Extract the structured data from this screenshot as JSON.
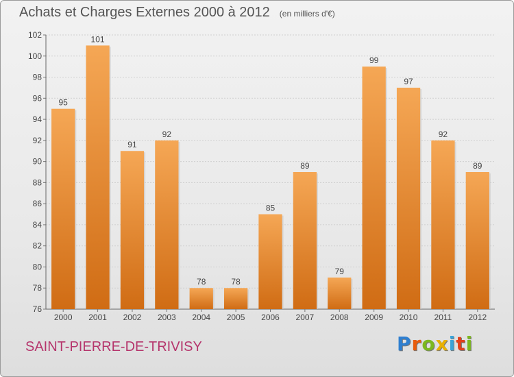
{
  "page": {
    "title": "Achats et Charges Externes 2000 à 2012",
    "subtitle": "(en milliers d'€)",
    "commune": "SAINT-PIERRE-DE-TRIVISY",
    "logo": "Proxiti",
    "colors": {
      "bar_top": "#f5a755",
      "bar_bottom": "#d06c14",
      "commune": "#b5356c",
      "logo": [
        "#2f7fd0",
        "#e85b0c",
        "#7cb81e",
        "#e8b000",
        "#3aa3d8",
        "#e2401b",
        "#7cb81e"
      ]
    }
  },
  "chart_data": {
    "type": "bar",
    "title": "Achats et Charges Externes 2000 à 2012",
    "subtitle": "(en milliers d'€)",
    "categories": [
      "2000",
      "2001",
      "2002",
      "2003",
      "2004",
      "2005",
      "2006",
      "2007",
      "2008",
      "2009",
      "2010",
      "2011",
      "2012"
    ],
    "values": [
      95,
      101,
      91,
      92,
      78,
      78,
      85,
      89,
      79,
      99,
      97,
      92,
      89
    ],
    "ylim": [
      76,
      102
    ],
    "yticks": [
      76,
      78,
      80,
      82,
      84,
      86,
      88,
      90,
      92,
      94,
      96,
      98,
      100,
      102
    ],
    "grid": true,
    "legend": "none"
  }
}
